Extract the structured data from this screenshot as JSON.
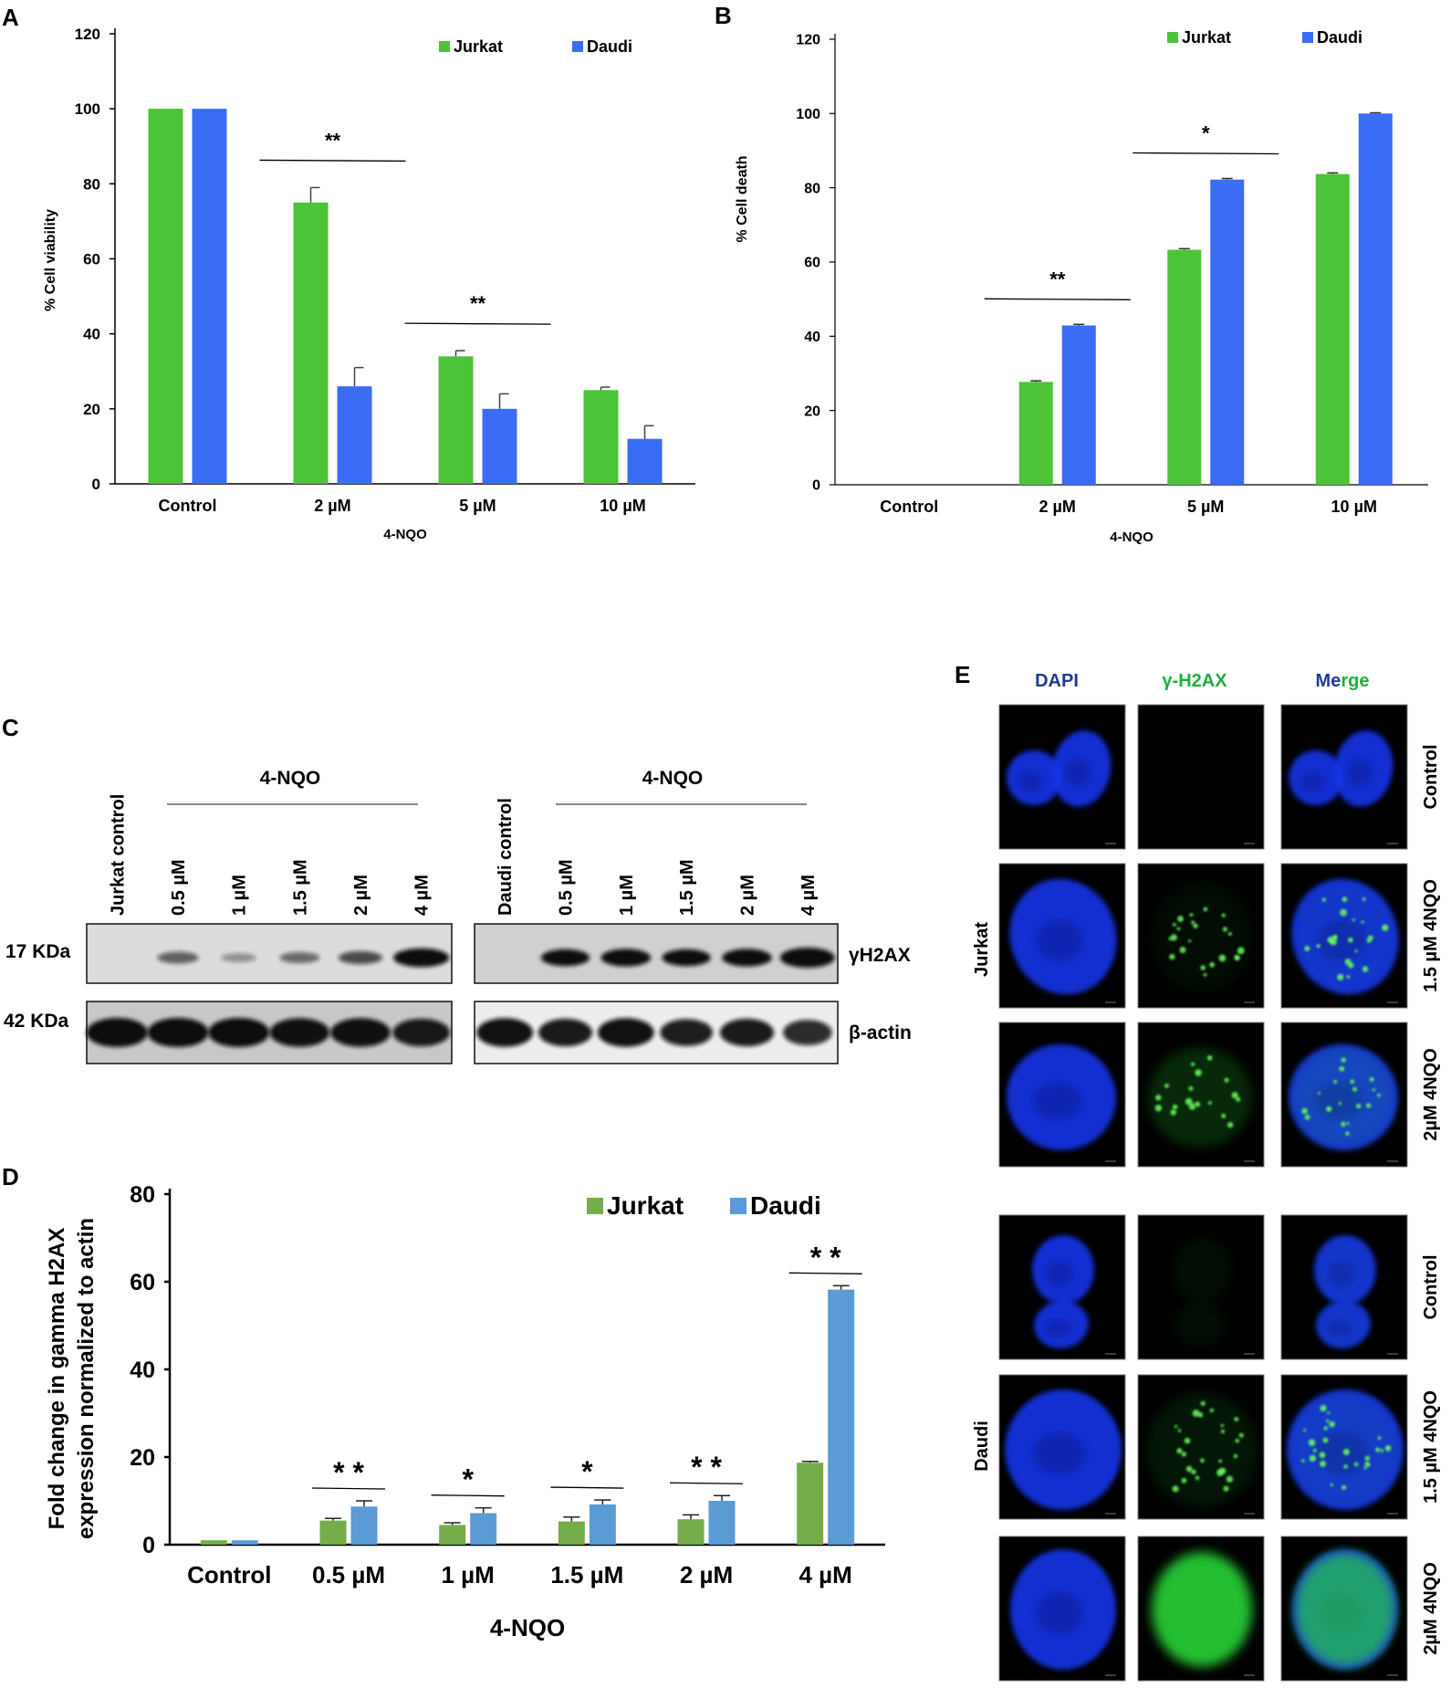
{
  "panel_letters": {
    "A": "A",
    "B": "B",
    "C": "C",
    "D": "D",
    "E": "E"
  },
  "colors": {
    "jurkat_bright": "#4CC437",
    "daudi_bright": "#3B6CF5",
    "jurkat_d": "#74AD49",
    "daudi_d": "#5B9BD5"
  },
  "chart_data": [
    {
      "id": "A",
      "type": "bar",
      "categories": [
        "Control",
        "2 µM",
        "5 µM",
        "10 µM"
      ],
      "series": [
        {
          "name": "Jurkat",
          "values": [
            100,
            75,
            34,
            25
          ],
          "errors": [
            0,
            4,
            1.5,
            0.8
          ]
        },
        {
          "name": "Daudi",
          "values": [
            100,
            26,
            20,
            12
          ],
          "errors": [
            0,
            5,
            4,
            3.5
          ]
        }
      ],
      "xlabel": "4-NQO",
      "ylabel": "% Cell viability",
      "ylim": [
        0,
        120
      ],
      "yticks": [
        "0",
        "20",
        "40",
        "60",
        "80",
        "100",
        "120"
      ],
      "significance": [
        {
          "category": 1,
          "label": "**"
        },
        {
          "category": 2,
          "label": "**"
        }
      ],
      "legend": "top-right"
    },
    {
      "id": "B",
      "type": "bar",
      "categories": [
        "Control",
        "2 µM",
        "5 µM",
        "10 µM"
      ],
      "series": [
        {
          "name": "Jurkat",
          "values": [
            0,
            27.7,
            63.3,
            83.7
          ],
          "errors": [
            0,
            0.3,
            0.3,
            0.3
          ]
        },
        {
          "name": "Daudi",
          "values": [
            0,
            42.9,
            82.2,
            100
          ],
          "errors": [
            0,
            0.3,
            0.3,
            0.2
          ]
        }
      ],
      "xlabel": "4-NQO",
      "ylabel": "% Cell death",
      "ylim": [
        0,
        120
      ],
      "yticks": [
        "0",
        "20",
        "40",
        "60",
        "80",
        "100",
        "120"
      ],
      "significance": [
        {
          "category": 1,
          "label": "**"
        },
        {
          "category": 2,
          "label": "*"
        }
      ],
      "legend": "top-right"
    },
    {
      "id": "D",
      "type": "bar",
      "categories": [
        "Control",
        "0.5 µM",
        "1 µM",
        "1.5 µM",
        "2 µM",
        "4 µM"
      ],
      "series": [
        {
          "name": "Jurkat",
          "values": [
            1,
            5.5,
            4.5,
            5.3,
            5.8,
            18.7
          ],
          "errors": [
            0,
            0.5,
            0.5,
            1,
            1,
            0.3
          ]
        },
        {
          "name": "Daudi",
          "values": [
            1,
            8.7,
            7.2,
            9.2,
            10,
            58.2
          ],
          "errors": [
            0,
            1.3,
            1.2,
            1,
            1.2,
            0.9
          ]
        }
      ],
      "xlabel": "4-NQO",
      "ylabel": "Fold change in gamma H2AX expression normalized to actin",
      "ylim": [
        0,
        80
      ],
      "yticks": [
        "0",
        "20",
        "40",
        "60",
        "80"
      ],
      "significance": [
        {
          "category": 1,
          "label": "* *"
        },
        {
          "category": 2,
          "label": "*"
        },
        {
          "category": 3,
          "label": "*"
        },
        {
          "category": 4,
          "label": "* *"
        },
        {
          "category": 5,
          "label": "* *"
        }
      ],
      "legend": "top-right"
    }
  ],
  "blot": {
    "nqo_label": "4-NQO",
    "jurkat_lanes": [
      "Jurkat control",
      "0.5 µM",
      "1 µM",
      "1.5 µM",
      "2 µM",
      "4 µM"
    ],
    "daudi_lanes": [
      "Daudi control",
      "0.5 µM",
      "1 µM",
      "1.5 µM",
      "2 µM",
      "4 µM"
    ],
    "size_top": "17 KDa",
    "size_bottom": "42 KDa",
    "row_top": "γH2AX",
    "row_bottom": "β-actin",
    "jurkat_h2ax": [
      0,
      0.35,
      0.12,
      0.3,
      0.45,
      0.9
    ],
    "daudi_h2ax": [
      0,
      0.75,
      0.8,
      0.75,
      0.8,
      1.0
    ],
    "jurkat_actin": [
      1,
      1,
      1,
      0.95,
      0.95,
      0.85
    ],
    "daudi_actin": [
      0.95,
      0.85,
      0.95,
      0.8,
      0.85,
      0.65
    ]
  },
  "microscopy": {
    "col_dapi": "DAPI",
    "col_h2ax": "γ-H2AX",
    "col_merge_a": "Me",
    "col_merge_b": "rge",
    "group_jurkat": "Jurkat",
    "group_daudi": "Daudi",
    "row_labels": [
      "Control",
      "1.5 µM 4NQO",
      "2µM 4NQO",
      "Control",
      "1.5 µM 4NQO",
      "2µM 4NQO"
    ],
    "dapi_color": "#1436E8",
    "h2ax_color": "#2BE03A",
    "merge_dapi": "#1436E8"
  }
}
